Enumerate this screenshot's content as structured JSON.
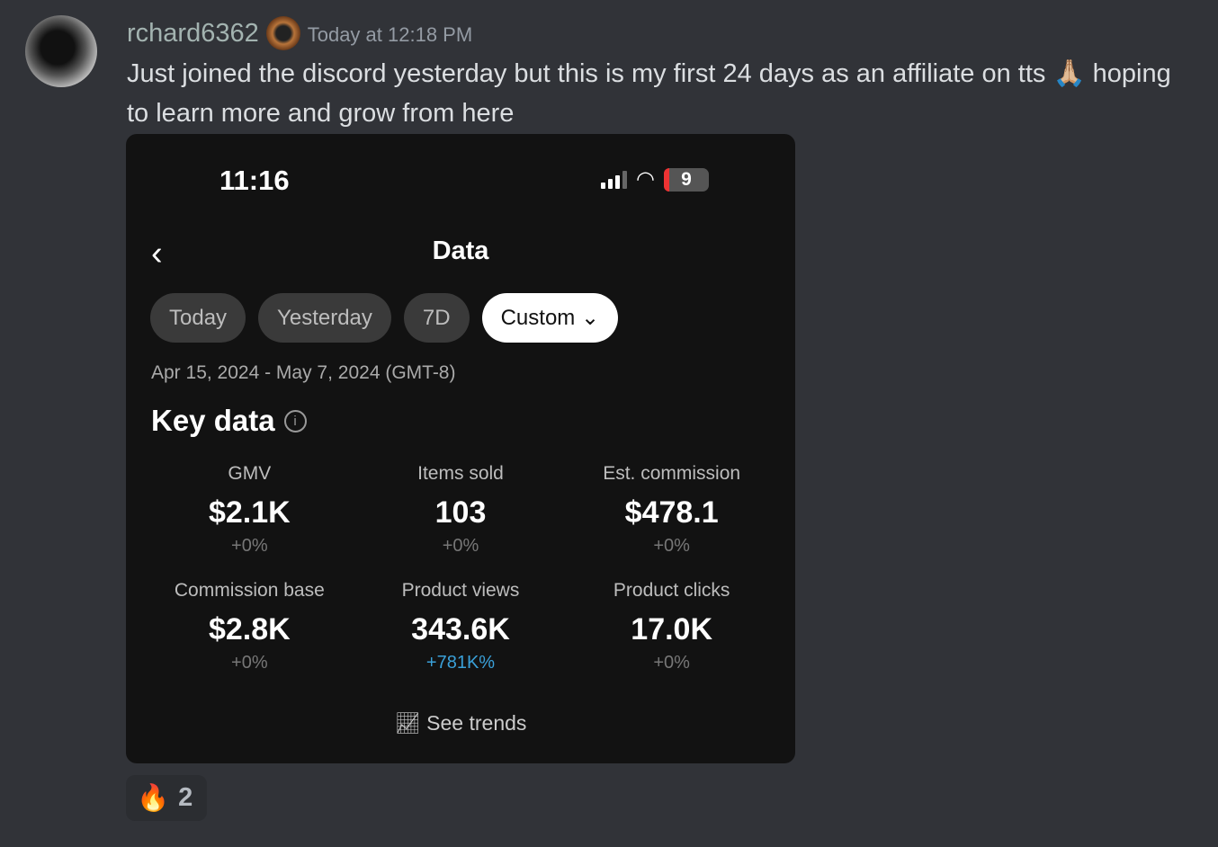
{
  "message": {
    "username": "rchard6362",
    "timestamp": "Today at 12:18 PM",
    "text": "Just joined the discord yesterday but this is my first 24 days as an affiliate on tts 🙏🏼 hoping to learn more and grow from here"
  },
  "screenshot": {
    "time": "11:16",
    "battery": "9",
    "title": "Data",
    "tabs": [
      {
        "label": "Today"
      },
      {
        "label": "Yesterday"
      },
      {
        "label": "7D"
      },
      {
        "label": "Custom ⌄"
      }
    ],
    "range": "Apr 15, 2024 - May 7, 2024 (GMT-8)",
    "key_data": "Key data",
    "metrics": [
      {
        "label": "GMV",
        "value": "$2.1K",
        "change": "+0%"
      },
      {
        "label": "Items sold",
        "value": "103",
        "change": "+0%"
      },
      {
        "label": "Est. commission",
        "value": "$478.1",
        "change": "+0%"
      },
      {
        "label": "Commission base",
        "value": "$2.8K",
        "change": "+0%"
      },
      {
        "label": "Product views",
        "value": "343.6K",
        "change": "+781K%"
      },
      {
        "label": "Product clicks",
        "value": "17.0K",
        "change": "+0%"
      }
    ],
    "see_trends": "See trends"
  },
  "reaction": {
    "emoji": "🔥",
    "count": "2"
  },
  "colors": {
    "background": "#313338",
    "positive_change": "#3aa0d8"
  }
}
